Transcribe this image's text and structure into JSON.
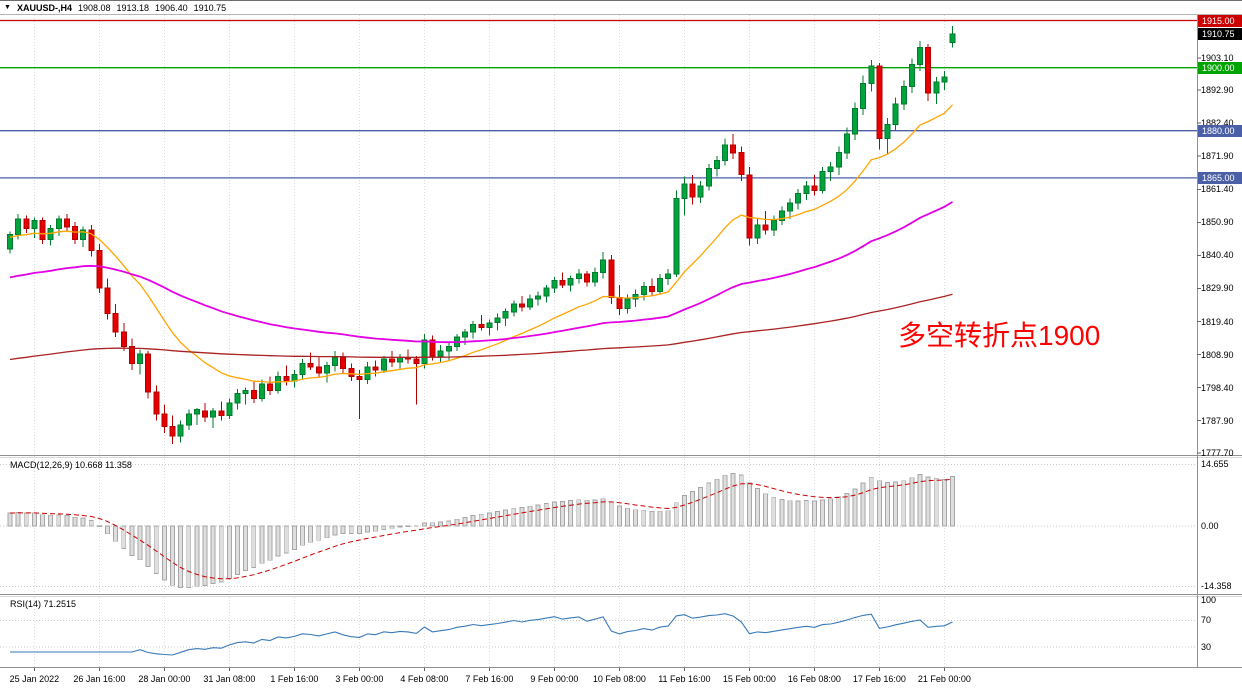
{
  "title_bar": {
    "symbol": "XAUUSD-,H4",
    "open": "1908.08",
    "high": "1913.18",
    "low": "1906.40",
    "close": "1910.75"
  },
  "annotation": {
    "text": "多空转折点1900",
    "color": "#ff0000"
  },
  "right_scale": {
    "price_ticks": [
      "1903.10",
      "1892.90",
      "1882.40",
      "1871.90",
      "1861.40",
      "1850.90",
      "1840.40",
      "1829.90",
      "1819.40",
      "1808.90",
      "1798.40",
      "1787.90",
      "1777.70"
    ],
    "badges": [
      {
        "label": "1915.00",
        "price": 1915.0,
        "color": "#cc0000"
      },
      {
        "label": "1910.75",
        "price": 1910.75,
        "color": "#000000"
      },
      {
        "label": "1900.00",
        "price": 1900.0,
        "color": "#00a400"
      },
      {
        "label": "1880.00",
        "price": 1880.0,
        "color": "#4a5fa5"
      },
      {
        "label": "1865.00",
        "price": 1865.0,
        "color": "#4a5fa5"
      }
    ]
  },
  "time_axis": {
    "labels": [
      "25 Jan 2022",
      "26 Jan 16:00",
      "28 Jan 00:00",
      "31 Jan 08:00",
      "1 Feb 16:00",
      "3 Feb 00:00",
      "4 Feb 08:00",
      "7 Feb 16:00",
      "9 Feb 00:00",
      "10 Feb 08:00",
      "11 Feb 16:00",
      "15 Feb 00:00",
      "16 Feb 08:00",
      "17 Feb 16:00",
      "21 Feb 00:00"
    ]
  },
  "panels": {
    "macd": {
      "label": "MACD(12,26,9) 10.668 11.358",
      "scale_labels": [
        "14.655",
        "0.00",
        "-14.358"
      ]
    },
    "rsi": {
      "label": "RSI(14) 71.2515",
      "scale_labels": [
        "100",
        "70",
        "30"
      ]
    }
  },
  "chart_data": {
    "type": "candlestick",
    "symbol": "XAUUSD-",
    "timeframe": "H4",
    "current_bar": {
      "open": 1908.08,
      "high": 1913.18,
      "low": 1906.4,
      "close": 1910.75
    },
    "ylim": [
      1777.0,
      1916.75
    ],
    "horizontal_lines": [
      {
        "price": 1915.0,
        "color": "#cc0000",
        "role": "resistance"
      },
      {
        "price": 1900.0,
        "color": "#00a400",
        "role": "pivot"
      },
      {
        "price": 1880.0,
        "color": "#4a5fa5",
        "role": "support"
      },
      {
        "price": 1865.0,
        "color": "#4a5fa5",
        "role": "support"
      }
    ],
    "indicators": {
      "macd": {
        "label": "MACD(12,26,9)",
        "value": 10.668,
        "signal": 11.358,
        "scale": [
          14.655,
          0,
          -14.358
        ],
        "histogram_color": "#dedede",
        "signal_color": "#cc0000"
      },
      "rsi": {
        "label": "RSI(14)",
        "value": 71.2515,
        "levels": [
          100,
          70,
          30
        ],
        "line_color": "#3a7ab8"
      },
      "moving_averages": [
        {
          "name": "ma-fast",
          "color": "#ffa500"
        },
        {
          "name": "ma-medium",
          "color": "#e400e4"
        },
        {
          "name": "ma-slow",
          "color": "#aa2222"
        }
      ]
    },
    "candles_ohlc": [
      [
        1842.5,
        1848.0,
        1841.0,
        1847.0
      ],
      [
        1847.0,
        1853.5,
        1845.5,
        1852.0
      ],
      [
        1852.0,
        1853.0,
        1847.5,
        1849.0
      ],
      [
        1849.0,
        1852.5,
        1846.0,
        1851.5
      ],
      [
        1851.5,
        1852.5,
        1844.0,
        1845.5
      ],
      [
        1845.5,
        1850.0,
        1843.5,
        1849.0
      ],
      [
        1849.0,
        1853.0,
        1846.5,
        1852.0
      ],
      [
        1852.0,
        1853.5,
        1848.0,
        1849.5
      ],
      [
        1849.5,
        1851.0,
        1844.0,
        1845.5
      ],
      [
        1845.5,
        1849.5,
        1843.0,
        1848.5
      ],
      [
        1848.5,
        1850.0,
        1840.0,
        1842.0
      ],
      [
        1842.0,
        1844.0,
        1828.5,
        1830.0
      ],
      [
        1830.0,
        1833.0,
        1820.0,
        1822.0
      ],
      [
        1822.0,
        1825.0,
        1814.5,
        1816.0
      ],
      [
        1816.0,
        1819.0,
        1810.0,
        1811.5
      ],
      [
        1811.5,
        1814.0,
        1804.0,
        1806.0
      ],
      [
        1806.0,
        1810.5,
        1802.5,
        1809.0
      ],
      [
        1809.0,
        1810.0,
        1795.0,
        1797.0
      ],
      [
        1797.0,
        1799.0,
        1788.0,
        1790.0
      ],
      [
        1790.0,
        1793.0,
        1784.0,
        1786.0
      ],
      [
        1786.0,
        1789.5,
        1780.5,
        1783.0
      ],
      [
        1783.0,
        1788.0,
        1781.0,
        1786.5
      ],
      [
        1786.5,
        1791.5,
        1785.0,
        1790.0
      ],
      [
        1790.0,
        1792.0,
        1786.5,
        1791.5
      ],
      [
        1791.0,
        1793.5,
        1787.5,
        1789.0
      ],
      [
        1789.0,
        1792.0,
        1785.5,
        1791.0
      ],
      [
        1791.0,
        1794.0,
        1788.0,
        1789.5
      ],
      [
        1789.5,
        1795.0,
        1788.5,
        1793.5
      ],
      [
        1793.5,
        1798.0,
        1791.5,
        1796.5
      ],
      [
        1796.5,
        1798.5,
        1793.0,
        1797.5
      ],
      [
        1797.5,
        1800.5,
        1793.5,
        1795.0
      ],
      [
        1795.0,
        1801.0,
        1794.0,
        1799.5
      ],
      [
        1799.5,
        1802.0,
        1796.0,
        1797.5
      ],
      [
        1797.5,
        1803.5,
        1796.5,
        1802.0
      ],
      [
        1802.0,
        1805.5,
        1799.0,
        1800.5
      ],
      [
        1800.5,
        1804.0,
        1798.5,
        1802.5
      ],
      [
        1802.5,
        1807.5,
        1801.0,
        1806.0
      ],
      [
        1806.0,
        1809.5,
        1804.0,
        1805.0
      ],
      [
        1805.0,
        1808.0,
        1801.5,
        1803.0
      ],
      [
        1803.0,
        1806.5,
        1800.0,
        1805.5
      ],
      [
        1805.5,
        1810.0,
        1803.5,
        1808.0
      ],
      [
        1808.0,
        1809.5,
        1803.0,
        1804.5
      ],
      [
        1804.5,
        1806.0,
        1800.5,
        1802.0
      ],
      [
        1802.0,
        1804.0,
        1788.5,
        1801.0
      ],
      [
        1801.0,
        1806.5,
        1799.5,
        1805.0
      ],
      [
        1805.0,
        1807.0,
        1802.0,
        1804.0
      ],
      [
        1804.0,
        1808.5,
        1803.0,
        1807.5
      ],
      [
        1807.5,
        1810.0,
        1805.0,
        1806.5
      ],
      [
        1806.5,
        1809.0,
        1804.5,
        1808.0
      ],
      [
        1808.0,
        1810.5,
        1806.0,
        1807.5
      ],
      [
        1807.5,
        1808.5,
        1793.0,
        1806.0
      ],
      [
        1806.0,
        1815.5,
        1804.5,
        1813.5
      ],
      [
        1813.5,
        1815.0,
        1807.0,
        1808.5
      ],
      [
        1808.5,
        1812.0,
        1806.5,
        1810.0
      ],
      [
        1810.0,
        1813.0,
        1807.0,
        1811.5
      ],
      [
        1811.5,
        1815.5,
        1810.0,
        1814.5
      ],
      [
        1814.5,
        1817.0,
        1812.0,
        1816.0
      ],
      [
        1816.0,
        1819.5,
        1814.0,
        1818.5
      ],
      [
        1818.5,
        1821.5,
        1816.5,
        1817.5
      ],
      [
        1817.5,
        1820.0,
        1815.0,
        1819.0
      ],
      [
        1819.0,
        1822.0,
        1816.5,
        1820.5
      ],
      [
        1820.5,
        1823.5,
        1818.0,
        1822.5
      ],
      [
        1822.5,
        1826.0,
        1821.0,
        1825.0
      ],
      [
        1825.0,
        1827.5,
        1822.5,
        1824.0
      ],
      [
        1824.0,
        1828.0,
        1823.0,
        1826.5
      ],
      [
        1826.5,
        1829.0,
        1824.5,
        1827.5
      ],
      [
        1827.5,
        1831.0,
        1825.5,
        1830.0
      ],
      [
        1830.0,
        1833.5,
        1828.5,
        1832.5
      ],
      [
        1832.5,
        1835.0,
        1830.0,
        1831.0
      ],
      [
        1831.0,
        1834.0,
        1829.0,
        1833.0
      ],
      [
        1833.0,
        1836.0,
        1831.5,
        1834.5
      ],
      [
        1834.5,
        1835.5,
        1830.5,
        1832.0
      ],
      [
        1832.0,
        1836.5,
        1830.5,
        1835.0
      ],
      [
        1835.0,
        1841.5,
        1833.0,
        1839.0
      ],
      [
        1839.0,
        1840.5,
        1825.0,
        1827.0
      ],
      [
        1827.0,
        1831.0,
        1821.5,
        1823.5
      ],
      [
        1823.5,
        1828.0,
        1822.0,
        1826.5
      ],
      [
        1826.5,
        1829.5,
        1824.0,
        1828.0
      ],
      [
        1828.0,
        1832.0,
        1826.0,
        1830.5
      ],
      [
        1830.5,
        1833.0,
        1827.5,
        1829.0
      ],
      [
        1829.0,
        1834.5,
        1828.0,
        1833.0
      ],
      [
        1833.0,
        1836.0,
        1831.0,
        1834.5
      ],
      [
        1834.5,
        1861.0,
        1833.5,
        1858.5
      ],
      [
        1858.5,
        1865.5,
        1853.0,
        1863.0
      ],
      [
        1863.0,
        1866.0,
        1856.5,
        1859.0
      ],
      [
        1859.0,
        1864.0,
        1857.0,
        1862.5
      ],
      [
        1862.5,
        1869.5,
        1861.0,
        1868.0
      ],
      [
        1868.0,
        1872.0,
        1865.5,
        1870.5
      ],
      [
        1870.5,
        1877.5,
        1869.0,
        1875.5
      ],
      [
        1875.5,
        1879.0,
        1871.0,
        1873.0
      ],
      [
        1873.0,
        1875.0,
        1864.0,
        1866.0
      ],
      [
        1866.0,
        1868.5,
        1843.5,
        1846.0
      ],
      [
        1846.0,
        1852.0,
        1844.0,
        1850.0
      ],
      [
        1850.0,
        1854.5,
        1847.0,
        1848.5
      ],
      [
        1848.5,
        1853.0,
        1846.5,
        1851.5
      ],
      [
        1851.5,
        1856.0,
        1850.0,
        1854.5
      ],
      [
        1854.5,
        1858.5,
        1852.0,
        1857.0
      ],
      [
        1857.0,
        1861.5,
        1855.0,
        1860.0
      ],
      [
        1860.0,
        1864.0,
        1858.0,
        1862.5
      ],
      [
        1862.5,
        1866.0,
        1859.5,
        1861.0
      ],
      [
        1861.0,
        1868.5,
        1860.0,
        1867.0
      ],
      [
        1867.0,
        1870.0,
        1864.0,
        1868.5
      ],
      [
        1868.5,
        1875.0,
        1866.0,
        1873.0
      ],
      [
        1873.0,
        1881.0,
        1871.0,
        1879.0
      ],
      [
        1879.0,
        1889.0,
        1877.0,
        1887.0
      ],
      [
        1887.0,
        1897.5,
        1885.0,
        1895.0
      ],
      [
        1895.0,
        1902.5,
        1892.5,
        1900.5
      ],
      [
        1900.5,
        1901.5,
        1874.0,
        1877.5
      ],
      [
        1877.5,
        1884.0,
        1872.5,
        1882.0
      ],
      [
        1882.0,
        1890.5,
        1880.0,
        1888.5
      ],
      [
        1888.5,
        1896.0,
        1886.5,
        1894.0
      ],
      [
        1894.0,
        1903.0,
        1892.0,
        1901.0
      ],
      [
        1901.0,
        1908.5,
        1899.0,
        1906.5
      ],
      [
        1906.5,
        1907.5,
        1889.5,
        1892.0
      ],
      [
        1892.0,
        1897.0,
        1888.5,
        1895.5
      ],
      [
        1895.5,
        1899.0,
        1893.0,
        1897.0
      ],
      [
        1908.08,
        1913.18,
        1906.4,
        1910.75
      ]
    ]
  }
}
